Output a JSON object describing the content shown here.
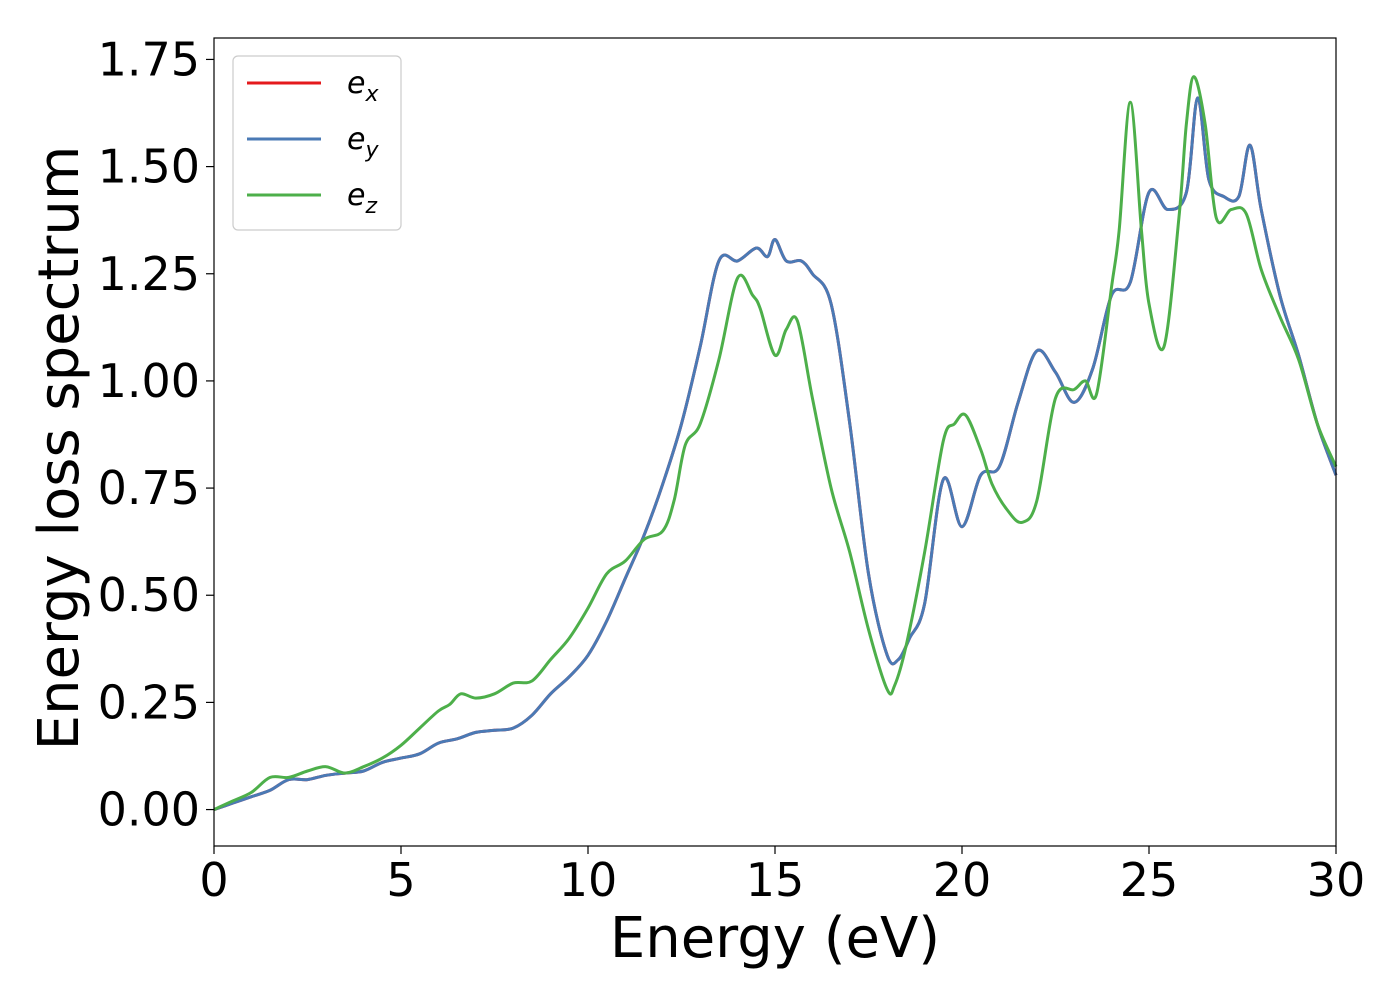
{
  "chart_data": {
    "type": "line",
    "xlabel": "Energy (eV)",
    "ylabel": "Energy loss spectrum",
    "xlim": [
      0,
      30
    ],
    "ylim": [
      -0.085,
      1.8
    ],
    "xticks": [
      0,
      5,
      10,
      15,
      20,
      25,
      30
    ],
    "xtick_labels": [
      "0",
      "5",
      "10",
      "15",
      "20",
      "25",
      "30"
    ],
    "yticks": [
      0.0,
      0.25,
      0.5,
      0.75,
      1.0,
      1.25,
      1.5,
      1.75
    ],
    "ytick_labels": [
      "0.00",
      "0.25",
      "0.50",
      "0.75",
      "1.00",
      "1.25",
      "1.50",
      "1.75"
    ],
    "grid": false,
    "legend_position": "top-left",
    "series": [
      {
        "name": "e",
        "subscript": "x",
        "color": "#e41a1c",
        "x": [
          0,
          0.5,
          1.0,
          1.5,
          2.0,
          2.5,
          3.0,
          3.5,
          4.0,
          4.5,
          5.0,
          5.5,
          6.0,
          6.5,
          7.0,
          7.5,
          8.0,
          8.5,
          9.0,
          9.5,
          10.0,
          10.5,
          11.0,
          11.5,
          12.0,
          12.5,
          13.0,
          13.5,
          14.0,
          14.5,
          14.8,
          15.0,
          15.3,
          15.7,
          16.0,
          16.5,
          17.0,
          17.5,
          18.0,
          18.3,
          18.6,
          19.0,
          19.5,
          20.0,
          20.5,
          21.0,
          21.5,
          22.0,
          22.5,
          23.0,
          23.5,
          24.0,
          24.5,
          25.0,
          25.5,
          26.0,
          26.3,
          26.6,
          27.0,
          27.4,
          27.7,
          28.0,
          28.5,
          29.0,
          29.5,
          30.0
        ],
        "y": [
          0.0,
          0.015,
          0.03,
          0.045,
          0.07,
          0.07,
          0.08,
          0.085,
          0.09,
          0.11,
          0.12,
          0.13,
          0.155,
          0.165,
          0.18,
          0.185,
          0.19,
          0.22,
          0.27,
          0.31,
          0.36,
          0.44,
          0.54,
          0.64,
          0.76,
          0.9,
          1.08,
          1.28,
          1.28,
          1.31,
          1.29,
          1.33,
          1.28,
          1.28,
          1.25,
          1.18,
          0.9,
          0.55,
          0.36,
          0.35,
          0.4,
          0.48,
          0.77,
          0.66,
          0.78,
          0.8,
          0.95,
          1.07,
          1.02,
          0.95,
          1.03,
          1.2,
          1.23,
          1.44,
          1.4,
          1.44,
          1.66,
          1.47,
          1.43,
          1.43,
          1.55,
          1.4,
          1.2,
          1.06,
          0.9,
          0.78
        ]
      },
      {
        "name": "e",
        "subscript": "y",
        "color": "#4a7ab5",
        "x": [
          0,
          0.5,
          1.0,
          1.5,
          2.0,
          2.5,
          3.0,
          3.5,
          4.0,
          4.5,
          5.0,
          5.5,
          6.0,
          6.5,
          7.0,
          7.5,
          8.0,
          8.5,
          9.0,
          9.5,
          10.0,
          10.5,
          11.0,
          11.5,
          12.0,
          12.5,
          13.0,
          13.5,
          14.0,
          14.5,
          14.8,
          15.0,
          15.3,
          15.7,
          16.0,
          16.5,
          17.0,
          17.5,
          18.0,
          18.3,
          18.6,
          19.0,
          19.5,
          20.0,
          20.5,
          21.0,
          21.5,
          22.0,
          22.5,
          23.0,
          23.5,
          24.0,
          24.5,
          25.0,
          25.5,
          26.0,
          26.3,
          26.6,
          27.0,
          27.4,
          27.7,
          28.0,
          28.5,
          29.0,
          29.5,
          30.0
        ],
        "y": [
          0.0,
          0.015,
          0.03,
          0.045,
          0.07,
          0.07,
          0.08,
          0.085,
          0.09,
          0.11,
          0.12,
          0.13,
          0.155,
          0.165,
          0.18,
          0.185,
          0.19,
          0.22,
          0.27,
          0.31,
          0.36,
          0.44,
          0.54,
          0.64,
          0.76,
          0.9,
          1.08,
          1.28,
          1.28,
          1.31,
          1.29,
          1.33,
          1.28,
          1.28,
          1.25,
          1.18,
          0.9,
          0.55,
          0.36,
          0.35,
          0.4,
          0.48,
          0.77,
          0.66,
          0.78,
          0.8,
          0.95,
          1.07,
          1.02,
          0.95,
          1.03,
          1.2,
          1.23,
          1.44,
          1.4,
          1.44,
          1.66,
          1.47,
          1.43,
          1.43,
          1.55,
          1.4,
          1.2,
          1.06,
          0.9,
          0.78
        ]
      },
      {
        "name": "e",
        "subscript": "z",
        "color": "#4daf4a",
        "x": [
          0,
          0.5,
          1.0,
          1.5,
          2.0,
          2.5,
          3.0,
          3.5,
          4.0,
          4.5,
          5.0,
          5.5,
          6.0,
          6.3,
          6.6,
          7.0,
          7.5,
          8.0,
          8.5,
          9.0,
          9.5,
          10.0,
          10.5,
          11.0,
          11.5,
          12.0,
          12.3,
          12.6,
          13.0,
          13.5,
          14.0,
          14.4,
          14.6,
          15.0,
          15.3,
          15.6,
          16.0,
          16.5,
          17.0,
          17.5,
          18.0,
          18.2,
          18.5,
          19.0,
          19.5,
          19.8,
          20.1,
          20.5,
          20.8,
          21.2,
          21.6,
          22.0,
          22.5,
          23.0,
          23.3,
          23.6,
          24.0,
          24.2,
          24.5,
          24.8,
          25.0,
          25.4,
          25.8,
          26.0,
          26.2,
          26.5,
          26.8,
          27.2,
          27.6,
          28.0,
          28.5,
          29.0,
          29.5,
          30.0
        ],
        "y": [
          0.0,
          0.02,
          0.04,
          0.075,
          0.075,
          0.09,
          0.1,
          0.085,
          0.1,
          0.12,
          0.15,
          0.19,
          0.23,
          0.245,
          0.27,
          0.26,
          0.27,
          0.295,
          0.3,
          0.35,
          0.4,
          0.47,
          0.55,
          0.58,
          0.63,
          0.65,
          0.72,
          0.85,
          0.9,
          1.05,
          1.24,
          1.2,
          1.17,
          1.06,
          1.12,
          1.14,
          0.96,
          0.75,
          0.6,
          0.42,
          0.28,
          0.29,
          0.38,
          0.6,
          0.86,
          0.9,
          0.92,
          0.84,
          0.76,
          0.7,
          0.67,
          0.72,
          0.96,
          0.98,
          1.0,
          0.97,
          1.22,
          1.35,
          1.65,
          1.35,
          1.18,
          1.08,
          1.38,
          1.6,
          1.71,
          1.6,
          1.38,
          1.4,
          1.39,
          1.26,
          1.15,
          1.05,
          0.9,
          0.8
        ]
      }
    ]
  }
}
